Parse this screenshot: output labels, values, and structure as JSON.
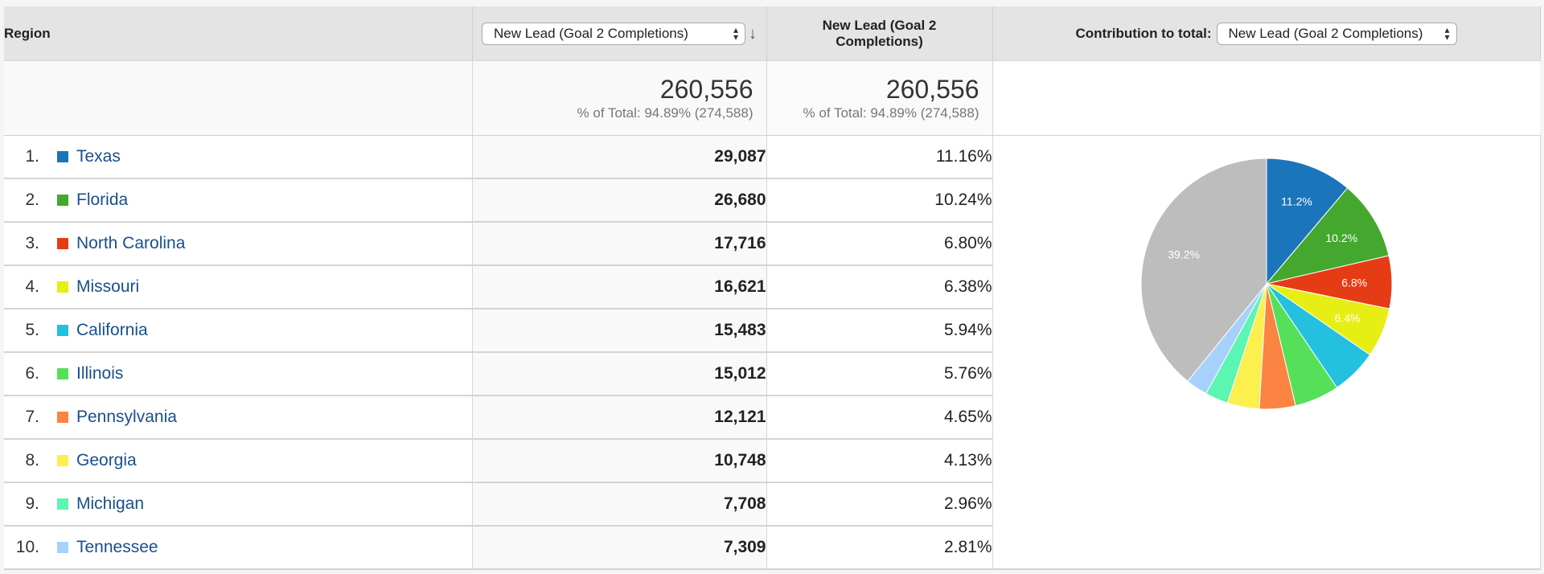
{
  "header": {
    "region_label": "Region",
    "metric_select_value": "New Lead (Goal 2 Completions)",
    "metric_column_label": "New Lead (Goal 2 Completions)",
    "contribution_label": "Contribution to total:",
    "contribution_select_value": "New Lead (Goal 2 Completions)"
  },
  "totals": {
    "value_main": "260,556",
    "pct_main": "% of Total: 94.89% (274,588)",
    "value_secondary": "260,556",
    "pct_secondary": "% of Total: 94.89% (274,588)"
  },
  "rows": [
    {
      "rank": "1.",
      "region": "Texas",
      "value": "29,087",
      "pct": "11.16%",
      "color": "#1b75bb"
    },
    {
      "rank": "2.",
      "region": "Florida",
      "value": "26,680",
      "pct": "10.24%",
      "color": "#44a82f"
    },
    {
      "rank": "3.",
      "region": "North Carolina",
      "value": "17,716",
      "pct": "6.80%",
      "color": "#e63c16"
    },
    {
      "rank": "4.",
      "region": "Missouri",
      "value": "16,621",
      "pct": "6.38%",
      "color": "#e7ee14"
    },
    {
      "rank": "5.",
      "region": "California",
      "value": "15,483",
      "pct": "5.94%",
      "color": "#24c0e0"
    },
    {
      "rank": "6.",
      "region": "Illinois",
      "value": "15,012",
      "pct": "5.76%",
      "color": "#56e05a"
    },
    {
      "rank": "7.",
      "region": "Pennsylvania",
      "value": "12,121",
      "pct": "4.65%",
      "color": "#fb8442"
    },
    {
      "rank": "8.",
      "region": "Georgia",
      "value": "10,748",
      "pct": "4.13%",
      "color": "#fbf04d"
    },
    {
      "rank": "9.",
      "region": "Michigan",
      "value": "7,708",
      "pct": "2.96%",
      "color": "#5cf5b1"
    },
    {
      "rank": "10.",
      "region": "Tennessee",
      "value": "7,309",
      "pct": "2.81%",
      "color": "#a6d1fb"
    }
  ],
  "chart_data": {
    "type": "pie",
    "categories": [
      "Texas",
      "Florida",
      "North Carolina",
      "Missouri",
      "California",
      "Illinois",
      "Pennsylvania",
      "Georgia",
      "Michigan",
      "Tennessee",
      ""
    ],
    "values": [
      11.16,
      10.24,
      6.8,
      6.38,
      5.94,
      5.76,
      4.65,
      4.13,
      2.96,
      2.81,
      39.17
    ],
    "colors": [
      "#1b75bb",
      "#44a82f",
      "#e63c16",
      "#e7ee14",
      "#24c0e0",
      "#56e05a",
      "#fb8442",
      "#fbf04d",
      "#5cf5b1",
      "#a6d1fb",
      "#bdbdbd"
    ],
    "data_labels": [
      "11.2%",
      "10.2%",
      "6.8%",
      "6.4%",
      "",
      "",
      "",
      "",
      "",
      "",
      "39.2%"
    ]
  }
}
